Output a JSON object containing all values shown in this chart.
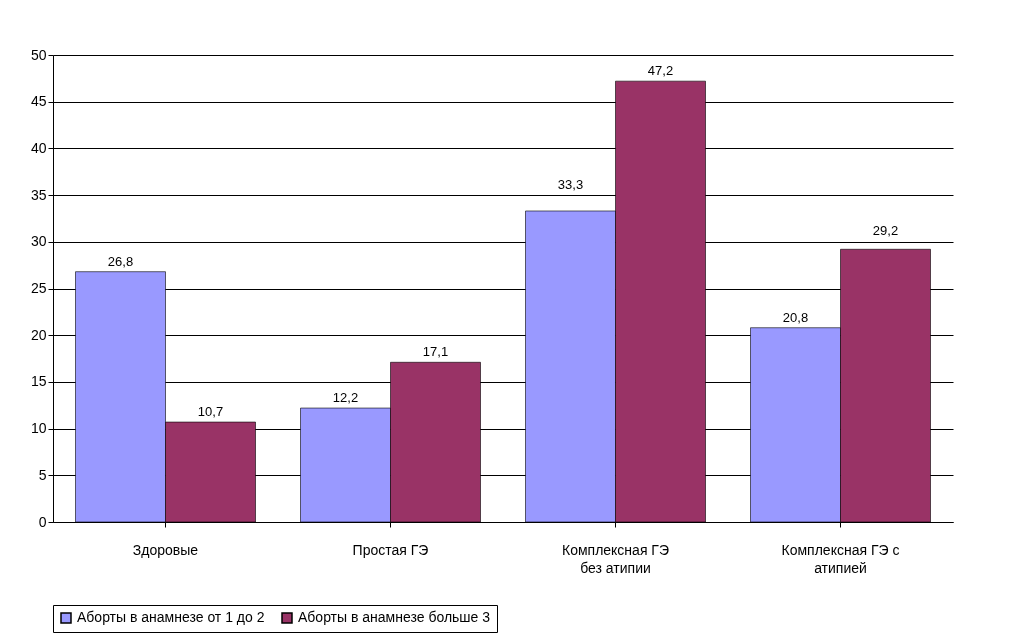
{
  "chart_data": {
    "type": "bar",
    "categories": [
      "Здоровые",
      "Простая ГЭ",
      "Комплексная ГЭ без атипии",
      "Комплексная ГЭ с атипией"
    ],
    "series": [
      {
        "name": "Аборты в анамнезе от 1 до 2",
        "color": "#9999ff",
        "values": [
          26.8,
          12.2,
          33.3,
          20.8
        ],
        "value_labels": [
          "26,8",
          "12,2",
          "33,3",
          "20,8"
        ]
      },
      {
        "name": "Аборты в анамнезе больше 3",
        "color": "#993366",
        "values": [
          10.7,
          17.1,
          47.2,
          29.2
        ],
        "value_labels": [
          "10,7",
          "17,1",
          "47,2",
          "29,2"
        ]
      }
    ],
    "ylim": [
      0,
      50
    ],
    "yticks": [
      0,
      5,
      10,
      15,
      20,
      25,
      30,
      35,
      40,
      45,
      50
    ],
    "grid": "y",
    "legend": "bottom"
  }
}
